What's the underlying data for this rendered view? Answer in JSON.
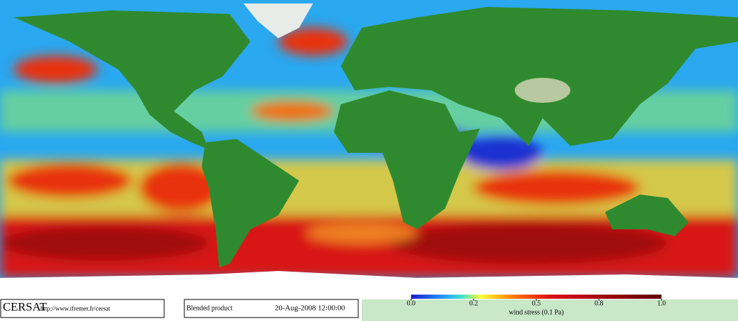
{
  "logo": "CERSAT",
  "url": "http://www.ifremer.fr/cersat",
  "product": "Blended product",
  "timestamp": "20-Aug-2008 12:00:00",
  "colorbar": {
    "label": "wind stress (0.1 Pa)",
    "ticks": [
      {
        "value": 0,
        "label": "0.0"
      },
      0.2,
      0.5,
      0.8,
      {
        "value": 1,
        "label": "1.0"
      }
    ]
  }
}
